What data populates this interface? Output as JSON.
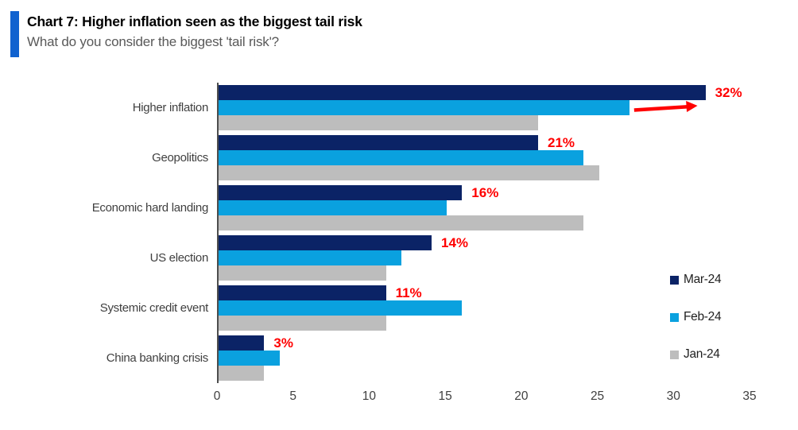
{
  "header": {
    "title": "Chart 7: Higher inflation seen as the biggest tail risk",
    "subtitle": "What do you consider the biggest 'tail risk'?",
    "accent_color": "#1062CF"
  },
  "chart_data": {
    "type": "bar",
    "orientation": "horizontal",
    "title": "Chart 7: Higher inflation seen as the biggest tail risk",
    "subtitle": "What do you consider the biggest 'tail risk'?",
    "categories": [
      "Higher inflation",
      "Geopolitics",
      "Economic hard landing",
      "US election",
      "Systemic credit event",
      "China banking crisis"
    ],
    "series": [
      {
        "name": "Mar-24",
        "color": "#0B2366",
        "values": [
          32,
          21,
          16,
          14,
          11,
          3
        ]
      },
      {
        "name": "Feb-24",
        "color": "#0AA1DF",
        "values": [
          27,
          24,
          15,
          12,
          16,
          4
        ]
      },
      {
        "name": "Jan-24",
        "color": "#BDBDBD",
        "values": [
          21,
          25,
          24,
          11,
          11,
          3
        ]
      }
    ],
    "data_labels": {
      "on_series": "Mar-24",
      "labels": [
        "32%",
        "21%",
        "16%",
        "14%",
        "11%",
        "3%"
      ],
      "color": "#FF0000"
    },
    "x_ticks": [
      "0",
      "5",
      "10",
      "15",
      "20",
      "25",
      "30",
      "35"
    ],
    "xlim": [
      0,
      35
    ],
    "grid": false,
    "legend_position": "right",
    "annotation": {
      "type": "arrow",
      "row": 0,
      "from_series": "Feb-24",
      "to_series": "Mar-24",
      "color": "#FF0000"
    }
  }
}
